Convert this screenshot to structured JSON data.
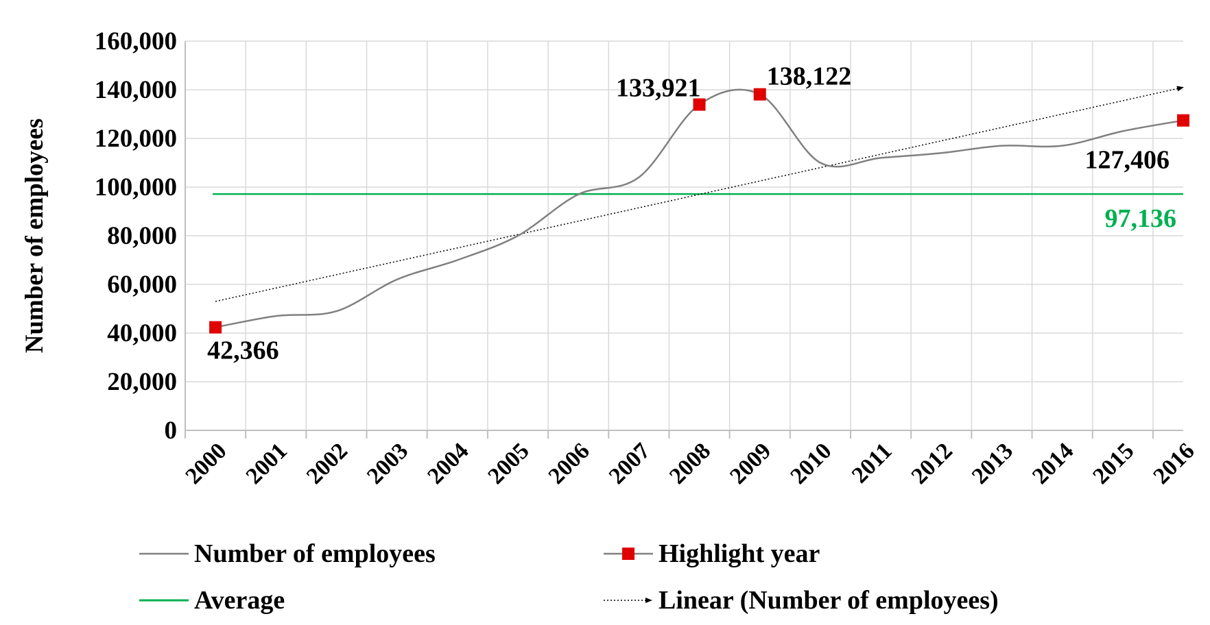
{
  "chart_data": {
    "type": "line",
    "ylabel": "Number of employees",
    "xlabel": "",
    "ylim": [
      0,
      160000
    ],
    "yticks": [
      0,
      20000,
      40000,
      60000,
      80000,
      100000,
      120000,
      140000,
      160000
    ],
    "ytick_labels": [
      "0",
      "20,000",
      "40,000",
      "60,000",
      "80,000",
      "100,000",
      "120,000",
      "140,000",
      "160,000"
    ],
    "categories": [
      "2000",
      "2001",
      "2002",
      "2003",
      "2004",
      "2005",
      "2006",
      "2007",
      "2008",
      "2009",
      "2010",
      "2011",
      "2012",
      "2013",
      "2014",
      "2015",
      "2016"
    ],
    "grid": true,
    "legend_position": "bottom",
    "series": [
      {
        "name": "Number of employees",
        "kind": "smooth-line",
        "color": "#808080",
        "values": [
          42366,
          47000,
          49000,
          62000,
          70000,
          80000,
          97000,
          104000,
          133921,
          138122,
          110000,
          112000,
          114000,
          117000,
          117000,
          123000,
          127406
        ]
      },
      {
        "name": "Highlight year",
        "kind": "markers",
        "color": "#e00000",
        "points": [
          {
            "category": "2000",
            "value": 42366,
            "label": "42,366"
          },
          {
            "category": "2008",
            "value": 133921,
            "label": "133,921"
          },
          {
            "category": "2009",
            "value": 138122,
            "label": "138,122"
          },
          {
            "category": "2016",
            "value": 127406,
            "label": "127,406"
          }
        ]
      },
      {
        "name": "Average",
        "kind": "hline",
        "color": "#00b050",
        "value": 97136,
        "label": "97,136"
      },
      {
        "name": "Linear (Number of employees)",
        "kind": "trendline",
        "color": "#000000",
        "start_value": 53000,
        "end_value": 141000
      }
    ]
  }
}
